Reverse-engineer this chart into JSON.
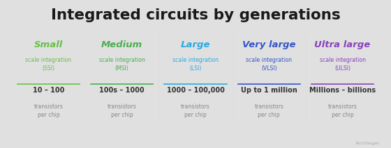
{
  "title": "Integrated circuits by generations",
  "title_color": "#1a1a1a",
  "background_outer": "#e0e0e0",
  "background_inner": "#ffffff",
  "columns": [
    {
      "name": "Small",
      "name_color": "#6abf4b",
      "subtitle": "scale integration\n(SSI)",
      "subtitle_color": "#6abf4b",
      "line_color": "#6abf4b",
      "value": "10 – 100",
      "value_color": "#333333",
      "desc": "transistors\nper chip",
      "desc_color": "#888888"
    },
    {
      "name": "Medium",
      "name_color": "#4caf50",
      "subtitle": "scale integration\n(MSI)",
      "subtitle_color": "#4caf50",
      "line_color": "#4caf50",
      "value": "100s – 1000",
      "value_color": "#333333",
      "desc": "transistors\nper chip",
      "desc_color": "#888888"
    },
    {
      "name": "Large",
      "name_color": "#29abe2",
      "subtitle": "scale integration\n(LSI)",
      "subtitle_color": "#29abe2",
      "line_color": "#29abe2",
      "value": "1000 – 100,000",
      "value_color": "#333333",
      "desc": "transistors\nper chip",
      "desc_color": "#888888"
    },
    {
      "name": "Very large",
      "name_color": "#3355cc",
      "subtitle": "scale integration\n(VLSI)",
      "subtitle_color": "#3355cc",
      "line_color": "#3355cc",
      "value": "Up to 1 million",
      "value_color": "#333333",
      "desc": "transistors\nper chip",
      "desc_color": "#888888"
    },
    {
      "name": "Ultra large",
      "name_color": "#8844bb",
      "subtitle": "scale integration\n(ULSI)",
      "subtitle_color": "#8844bb",
      "line_color": "#8844bb",
      "value": "Millions – billions",
      "value_color": "#333333",
      "desc": "transistors\nper chip",
      "desc_color": "#888888"
    }
  ],
  "divider_color": "#dddddd",
  "footer_text": "TechTarget",
  "footer_color": "#aaaaaa"
}
